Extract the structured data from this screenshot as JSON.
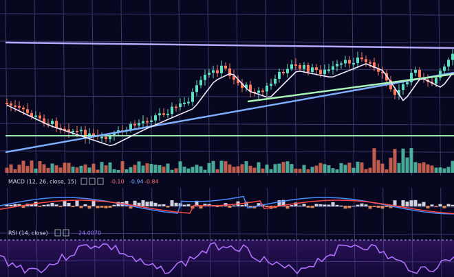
{
  "macd": {
    "label": "MACD (12, 26, close, 15)",
    "readings": [
      "-0.10",
      "-0.94",
      "-0.84"
    ]
  },
  "rsi": {
    "label": "RSI (14, close)",
    "reading": "24.0070"
  }
}
